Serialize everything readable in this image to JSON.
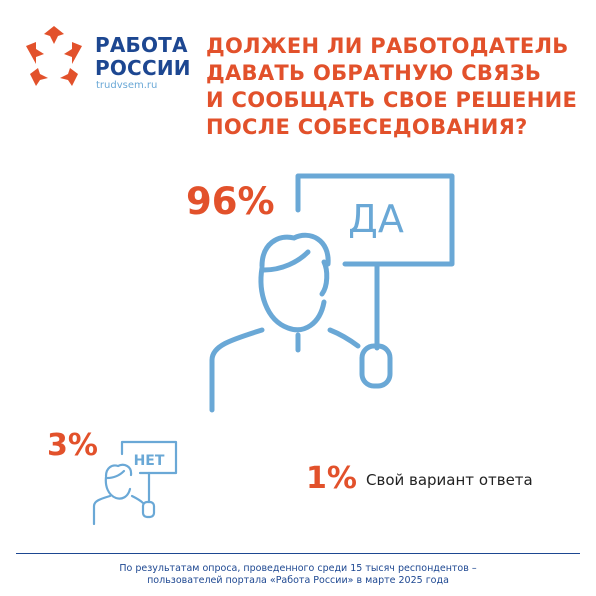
{
  "logo": {
    "line1": "РАБОТА",
    "line2": "РОССИИ",
    "url": "trudvsem.ru"
  },
  "title": {
    "line1": "ДОЛЖЕН ЛИ РАБОТОДАТЕЛЬ",
    "line2": "ДАВАТЬ ОБРАТНУЮ СВЯЗЬ",
    "line3": "И СООБЩАТЬ СВОЕ РЕШЕНИЕ",
    "line4": "ПОСЛЕ СОБЕСЕДОВАНИЯ?"
  },
  "colors": {
    "accent": "#e2512b",
    "brand": "#1d4791",
    "icon": "#6aa8d6"
  },
  "chart_data": {
    "type": "pie",
    "title": "ДОЛЖЕН ЛИ РАБОТОДАТЕЛЬ ДАВАТЬ ОБРАТНУЮ СВЯЗЬ И СООБЩАТЬ СВОЕ РЕШЕНИЕ ПОСЛЕ СОБЕСЕДОВАНИЯ?",
    "categories": [
      "ДА",
      "НЕТ",
      "Свой вариант ответа"
    ],
    "values": [
      96,
      3,
      1
    ],
    "unit": "%",
    "labels": {
      "yes_pct": "96%",
      "yes_sign": "ДА",
      "no_pct": "3%",
      "no_sign": "НЕТ",
      "other_pct": "1%",
      "other_label": "Свой вариант ответа"
    }
  },
  "footnote": {
    "line1": "По результатам опроса, проведенного среди 15 тысяч респондентов –",
    "line2": "пользователей портала «Работа России» в марте 2025 года"
  }
}
